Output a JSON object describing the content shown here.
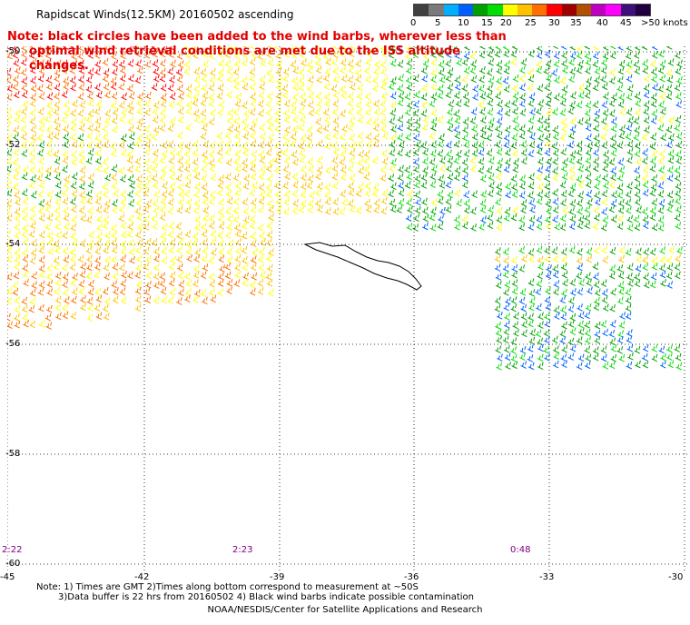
{
  "title": "Rapidscat Winds(12.5KM) 20160502 ascending",
  "note_lines": [
    "Note: black circles have been added to the wind barbs, wherever less than",
    "optimal wind retrieval conditions are met due to the ISS altitude changes."
  ],
  "speed_scale": {
    "colors": [
      "#404040",
      "#7a7a7a",
      "#00b0ff",
      "#0060ff",
      "#00a000",
      "#00dd00",
      "#ffff00",
      "#ffc000",
      "#ff7000",
      "#ff0000",
      "#a00000",
      "#b05000",
      "#c000c0",
      "#ff00ff",
      "#40107a",
      "#200040"
    ],
    "labels": [
      "0",
      "5",
      "10",
      "15",
      "20",
      "25",
      "30",
      "35",
      "40",
      "45",
      ">50 knots"
    ]
  },
  "latitudes": [
    "-50",
    "-52",
    "-54",
    "-56",
    "-58",
    "-60"
  ],
  "longitudes": [
    "-45",
    "-42",
    "-39",
    "-36",
    "-33",
    "-30"
  ],
  "pass_times": [
    "2:22",
    "2:23",
    "0:48"
  ],
  "footnotes": [
    "Note: 1) Times are GMT 2)Times along bottom correspond to measurement at ~50S",
    "3)Data buffer is 22 hrs from 20160502 4) Black wind barbs indicate possible contamination"
  ],
  "credit": "NOAA/NESDIS/Center for Satellite Applications and Research"
}
